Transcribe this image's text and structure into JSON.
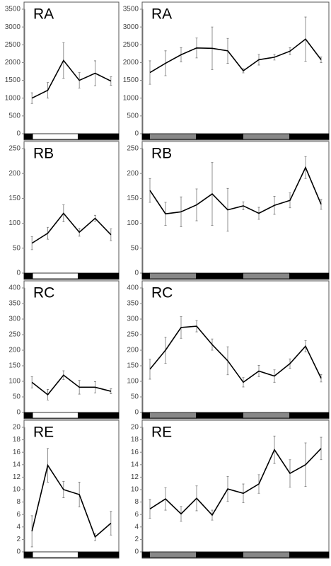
{
  "chart_data": [
    {
      "type": "line",
      "title": "RA",
      "categories": [
        null,
        null,
        null,
        null,
        null,
        null
      ],
      "values": [
        1000,
        1220,
        2060,
        1500,
        1700,
        1480
      ],
      "errors": [
        150,
        220,
        500,
        220,
        350,
        120
      ],
      "color": "#000000",
      "ylim": [
        0,
        3500
      ],
      "yticks": [
        0,
        500,
        1000,
        1500,
        2000,
        2500,
        3000,
        3500
      ]
    },
    {
      "type": "line",
      "title": "RA",
      "categories": [
        null,
        null,
        null,
        null,
        null,
        null,
        null,
        null,
        null,
        null,
        null,
        null
      ],
      "values": [
        1720,
        1980,
        2220,
        2410,
        2400,
        2330,
        1770,
        2080,
        2150,
        2320,
        2660,
        2080
      ],
      "errors": [
        330,
        350,
        200,
        280,
        600,
        350,
        60,
        150,
        80,
        100,
        620,
        80
      ],
      "color": "#000000",
      "ylim": [
        0,
        3500
      ],
      "yticks": [
        0,
        500,
        1000,
        1500,
        2000,
        2500,
        3000,
        3500
      ]
    },
    {
      "type": "line",
      "title": "RB",
      "categories": [
        null,
        null,
        null,
        null,
        null,
        null
      ],
      "values": [
        60,
        80,
        120,
        82,
        110,
        77
      ],
      "errors": [
        13,
        12,
        17,
        8,
        6,
        12
      ],
      "color": "#000000",
      "ylim": [
        0,
        250
      ],
      "yticks": [
        0,
        50,
        100,
        150,
        200,
        250
      ]
    },
    {
      "type": "line",
      "title": "RB",
      "categories": [
        null,
        null,
        null,
        null,
        null,
        null,
        null,
        null,
        null,
        null,
        null,
        null
      ],
      "values": [
        166,
        119,
        123,
        137,
        159,
        127,
        135,
        120,
        136,
        146,
        212,
        138
      ],
      "errors": [
        24,
        23,
        30,
        32,
        63,
        43,
        8,
        12,
        18,
        15,
        22,
        10
      ],
      "color": "#000000",
      "ylim": [
        0,
        250
      ],
      "yticks": [
        0,
        50,
        100,
        150,
        200,
        250
      ]
    },
    {
      "type": "line",
      "title": "RC",
      "categories": [
        null,
        null,
        null,
        null,
        null,
        null
      ],
      "values": [
        97,
        57,
        120,
        81,
        81,
        68
      ],
      "errors": [
        18,
        17,
        14,
        22,
        18,
        8
      ],
      "color": "#000000",
      "ylim": [
        0,
        400
      ],
      "yticks": [
        0,
        50,
        100,
        150,
        200,
        250,
        300,
        350,
        400
      ]
    },
    {
      "type": "line",
      "title": "RC",
      "categories": [
        null,
        null,
        null,
        null,
        null,
        null,
        null,
        null,
        null,
        null,
        null,
        null
      ],
      "values": [
        139,
        200,
        273,
        277,
        218,
        166,
        97,
        133,
        117,
        157,
        213,
        110
      ],
      "errors": [
        32,
        42,
        35,
        18,
        18,
        45,
        15,
        18,
        20,
        15,
        18,
        12
      ],
      "color": "#000000",
      "ylim": [
        0,
        400
      ],
      "yticks": [
        0,
        50,
        100,
        150,
        200,
        250,
        300,
        350,
        400
      ]
    },
    {
      "type": "line",
      "title": "RE",
      "categories": [
        null,
        null,
        null,
        null,
        null,
        null
      ],
      "values": [
        3.3,
        13.9,
        10,
        9.2,
        2.4,
        4.6
      ],
      "errors": [
        2.5,
        2.7,
        1.3,
        2,
        0.6,
        1.9
      ],
      "color": "#000000",
      "ylim": [
        0,
        20
      ],
      "yticks": [
        0,
        2,
        4,
        6,
        8,
        10,
        12,
        14,
        16,
        18,
        20
      ]
    },
    {
      "type": "line",
      "title": "RE",
      "categories": [
        null,
        null,
        null,
        null,
        null,
        null,
        null,
        null,
        null,
        null,
        null,
        null
      ],
      "values": [
        6.9,
        8.5,
        6.1,
        8.6,
        5.9,
        10.1,
        9.4,
        10.9,
        16.4,
        12.6,
        14,
        16.6
      ],
      "errors": [
        1.5,
        1.8,
        1.2,
        2,
        0.8,
        2,
        1.5,
        1.5,
        2.2,
        2.2,
        3.5,
        1.8
      ],
      "color": "#000000",
      "ylim": [
        0,
        20
      ],
      "yticks": [
        0,
        2,
        4,
        6,
        8,
        10,
        12,
        14,
        16,
        18,
        20
      ]
    }
  ]
}
